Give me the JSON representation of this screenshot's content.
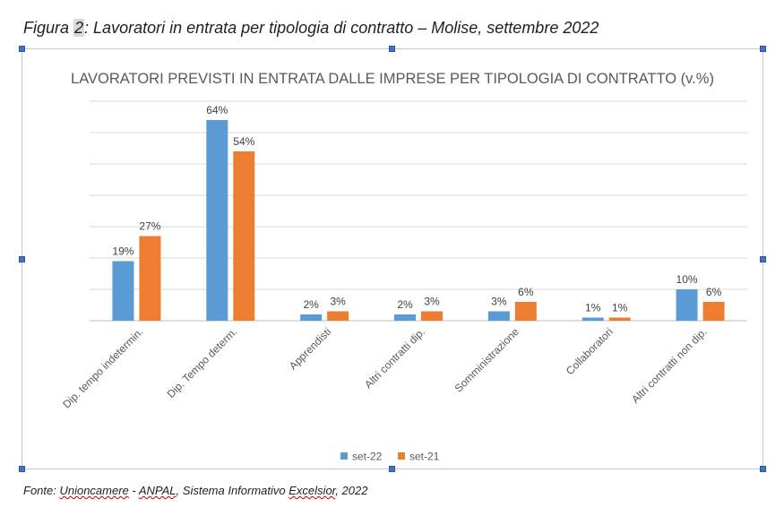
{
  "caption": {
    "prefix": "Figura ",
    "number": "2",
    "text": ": Lavoratori in entrata per tipologia di contratto – Molise, settembre 2022"
  },
  "source": {
    "prefix": "Fonte: ",
    "org1": "Unioncamere",
    "sep": " - ",
    "org2": "ANPAL",
    "mid": ", Sistema Informativo ",
    "org3": "Excelsior",
    "suffix": ", 2022"
  },
  "chart_data": {
    "type": "bar",
    "title": "LAVORATORI PREVISTI IN ENTRATA DALLE IMPRESE PER TIPOLOGIA DI CONTRATTO (v.%)",
    "categories": [
      "Dip. tempo indetermin.",
      "Dip. Tempo determ.",
      "Apprendisti",
      "Altri contratti dip.",
      "Somministrazione",
      "Collaboratori",
      "Altri contratti non dip."
    ],
    "series": [
      {
        "name": "set-22",
        "values": [
          19,
          64,
          2,
          2,
          3,
          1,
          10
        ],
        "labels": [
          "19%",
          "64%",
          "2%",
          "2%",
          "3%",
          "1%",
          "10%"
        ],
        "color": "#5b9bd5"
      },
      {
        "name": "set-21",
        "values": [
          27,
          54,
          3,
          3,
          6,
          1,
          6
        ],
        "labels": [
          "27%",
          "54%",
          "3%",
          "3%",
          "6%",
          "1%",
          "6%"
        ],
        "color": "#ed7d31"
      }
    ],
    "ylim": [
      0,
      70
    ],
    "grid": true,
    "legend": "bottom-center"
  }
}
